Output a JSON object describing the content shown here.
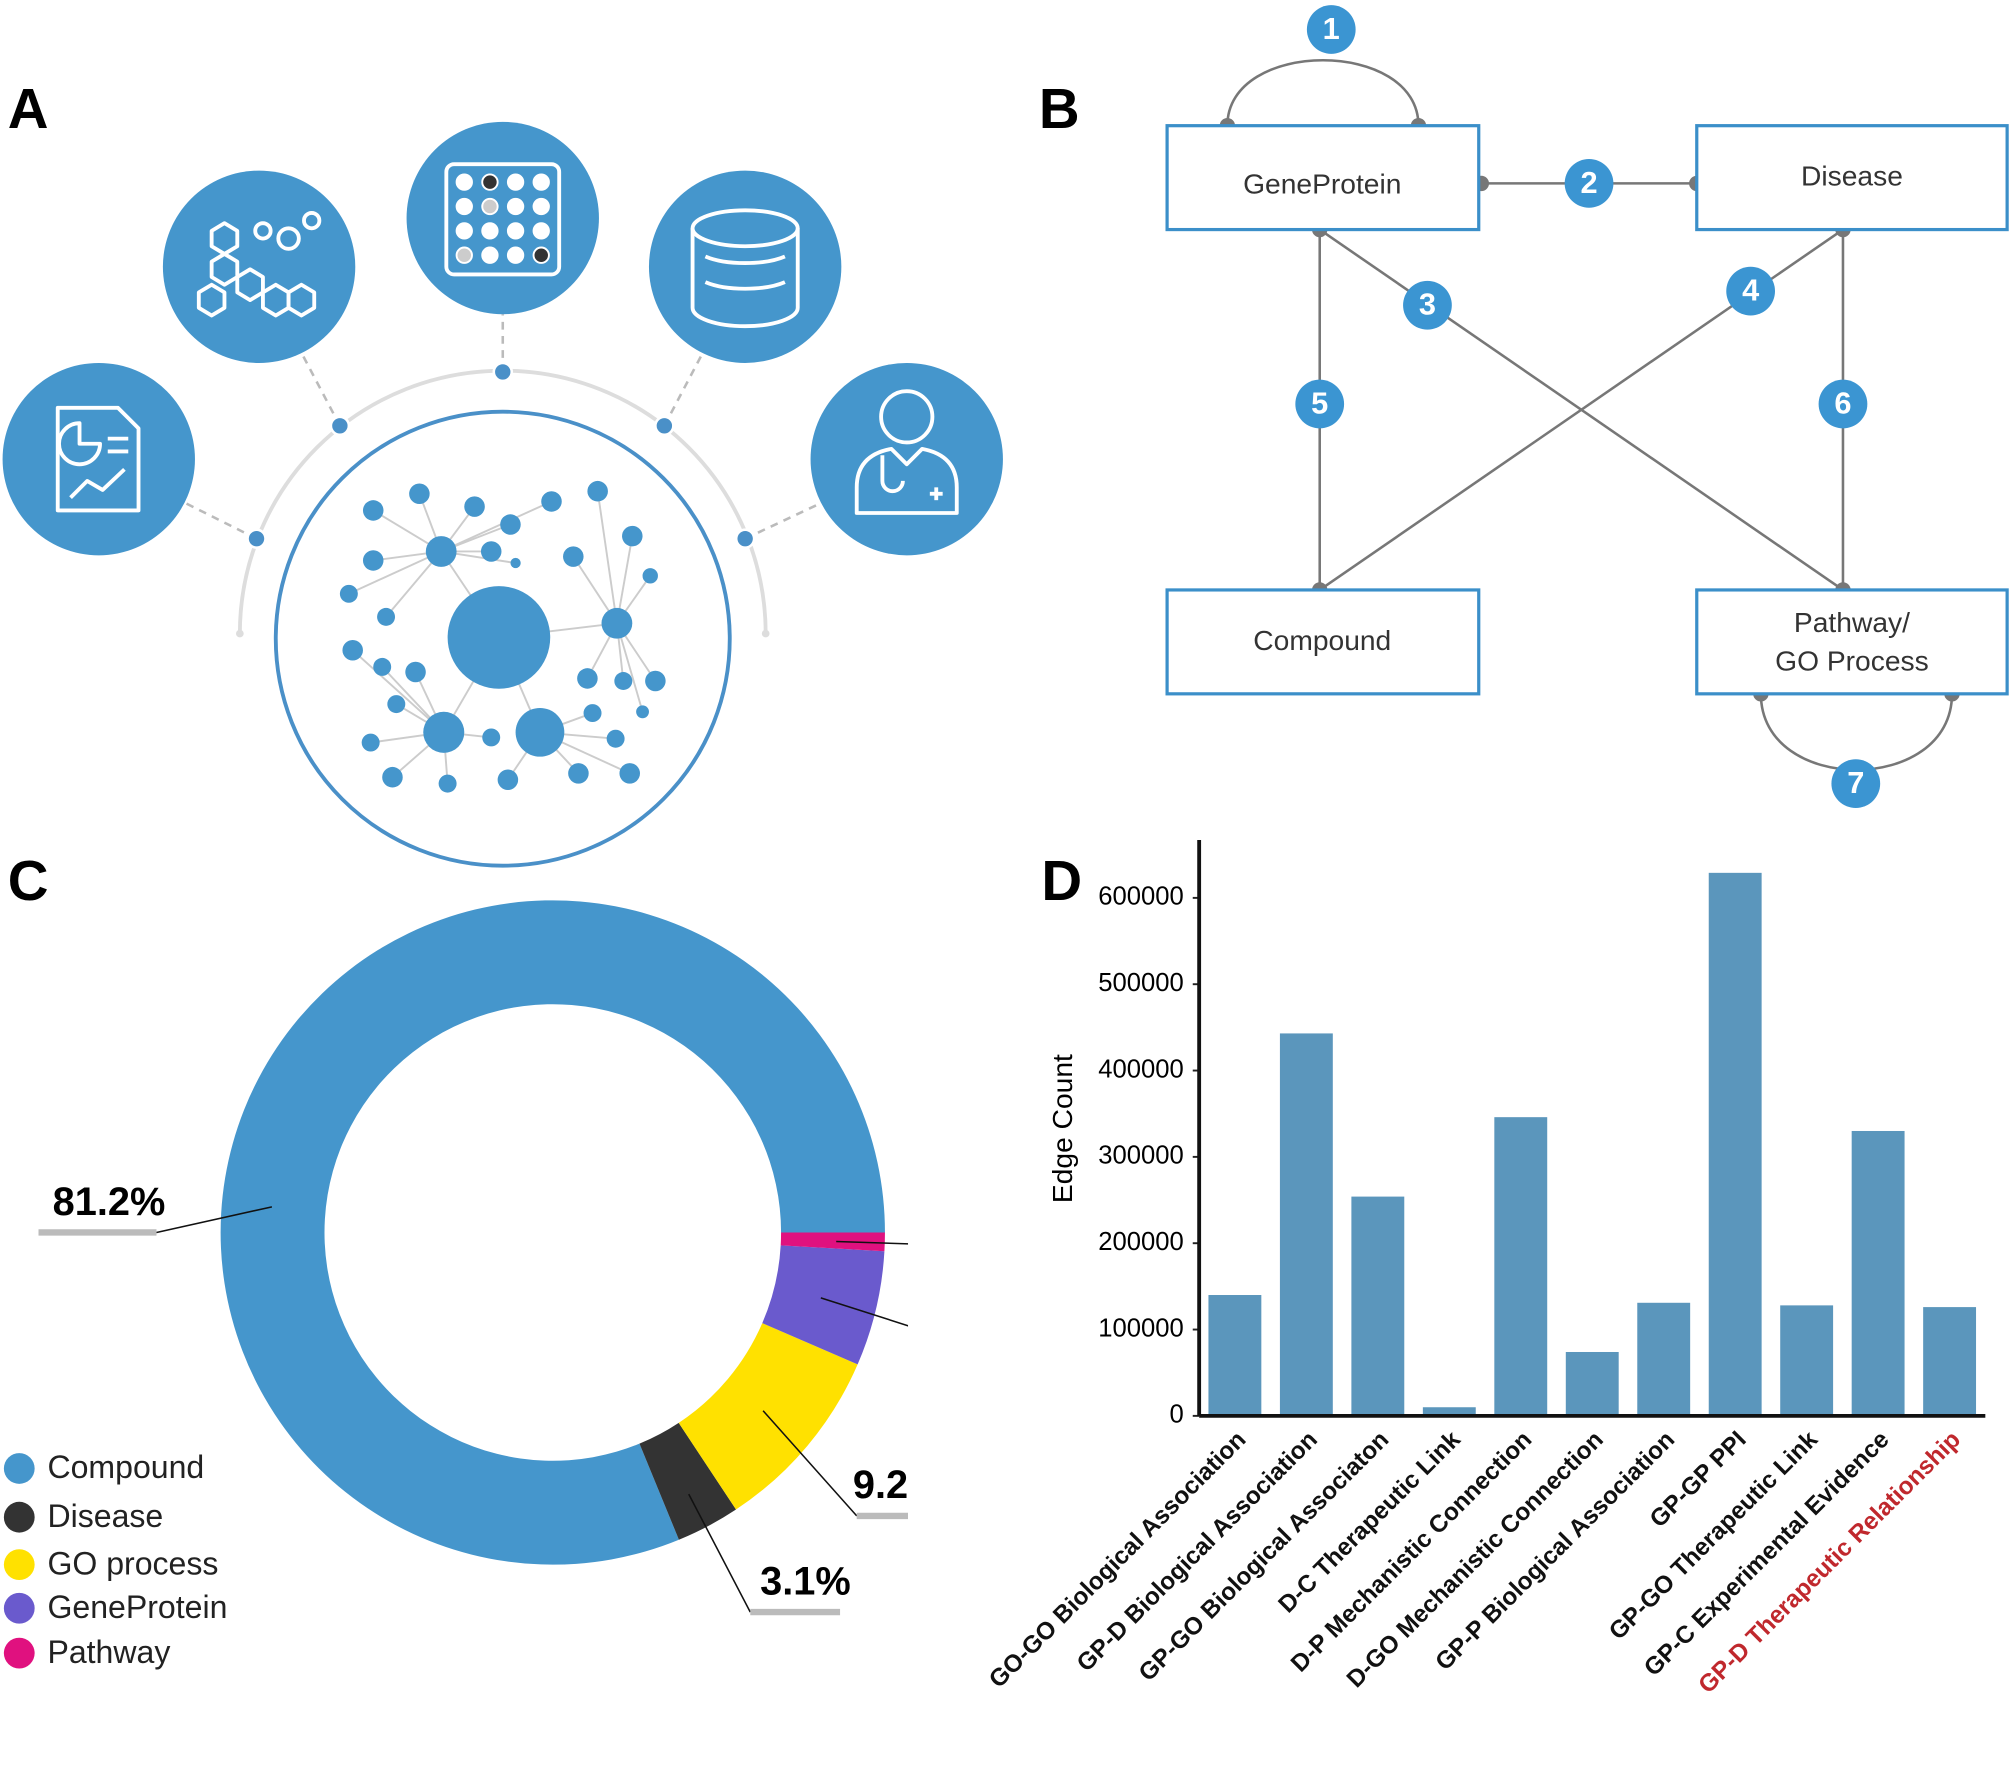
{
  "panel_labels": [
    "A",
    "B",
    "C",
    "D"
  ],
  "diagram": {
    "nodes": [
      {
        "label": "GeneProtein"
      },
      {
        "label": "Disease"
      },
      {
        "label": "Compound"
      },
      {
        "label_lines": [
          "Pathway/",
          "GO Process"
        ]
      }
    ],
    "edges": [
      {
        "label": "1"
      },
      {
        "label": "2"
      },
      {
        "label": "3"
      },
      {
        "label": "4"
      },
      {
        "label": "5"
      },
      {
        "label": "6"
      },
      {
        "label": "7"
      }
    ]
  },
  "chart_data": [
    {
      "type": "pie",
      "categories": [
        "Compound",
        "Disease",
        "GO process",
        "GeneProtein",
        "Pathway"
      ],
      "values": [
        81.2,
        3.1,
        9.2,
        5.6,
        0.9
      ],
      "value_labels": [
        "81.2%",
        "3.1%",
        "9.2",
        null,
        null
      ],
      "colors": [
        "#4596cc",
        "#333333",
        "#ffe100",
        "#6a5acd",
        "#e0117f"
      ],
      "legend": "lower left"
    },
    {
      "type": "bar",
      "categories": [
        "GO-GO Biological Association",
        "GP-D Biological Association",
        "GP-GO Biological Associaton",
        "D-C Therapeutic Link",
        "D-P Mechanistic Connection",
        "D-GO Mechanistic Connection",
        "GP-P Biological Association",
        "GP-GP PPI",
        "GP-GO Therapeutic Link",
        "GP-C Experimental Evidence",
        "GP-D Therapeutic Relationship"
      ],
      "values": [
        140000,
        443000,
        254000,
        10000,
        346000,
        74000,
        131000,
        629000,
        128000,
        330000,
        126000
      ],
      "color": "#5b96bc",
      "y_label": "Edge Count",
      "ylim": [
        0,
        667000
      ],
      "yticks": [
        0,
        100000,
        200000,
        300000,
        400000,
        500000,
        600000
      ],
      "category_label_colors": [
        "#111111",
        "#111111",
        "#111111",
        "#111111",
        "#111111",
        "#111111",
        "#111111",
        "#111111",
        "#111111",
        "#111111",
        "#c0282d"
      ]
    }
  ]
}
